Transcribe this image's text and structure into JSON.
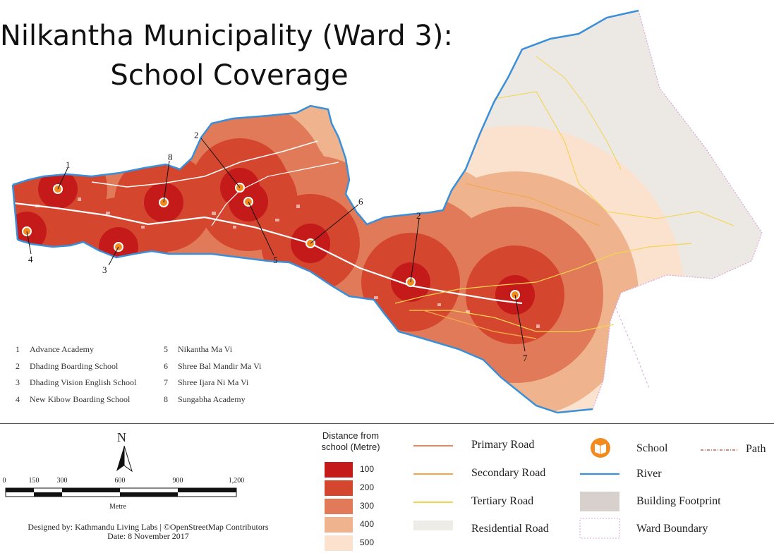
{
  "title": {
    "line1": "Nilkantha Municipality (Ward 3):",
    "line2": "School Coverage"
  },
  "schools": [
    {
      "number": "1",
      "name": "Advance Academy"
    },
    {
      "number": "2",
      "name": "Dhading Boarding School"
    },
    {
      "number": "3",
      "name": "Dhading Vision English School"
    },
    {
      "number": "4",
      "name": "New Kibow Boarding School"
    },
    {
      "number": "5",
      "name": "Nikantha Ma Vi"
    },
    {
      "number": "6",
      "name": "Shree Bal Mandir Ma Vi"
    },
    {
      "number": "7",
      "name": "Shree Ijara Ni Ma Vi"
    },
    {
      "number": "8",
      "name": "Sungabha Academy"
    }
  ],
  "map_callouts": [
    "1",
    "2",
    "8",
    "2",
    "6",
    "4",
    "3",
    "5",
    "7"
  ],
  "scale_bar": {
    "ticks": [
      "0",
      "150",
      "300",
      "600",
      "900",
      "1,200"
    ],
    "unit": "Metre",
    "north_label": "N"
  },
  "distance_legend": {
    "title_line1": "Distance from",
    "title_line2": "school (Metre)",
    "classes": [
      {
        "label": "100",
        "color": "#c41a1a"
      },
      {
        "label": "200",
        "color": "#d4462e"
      },
      {
        "label": "300",
        "color": "#e07a58"
      },
      {
        "label": "400",
        "color": "#efb48d"
      },
      {
        "label": "500",
        "color": "#fbe2ce"
      }
    ]
  },
  "road_legend": [
    {
      "label": "Primary Road",
      "color": "#e8865b"
    },
    {
      "label": "Secondary Road",
      "color": "#f2a648"
    },
    {
      "label": "Tertiary Road",
      "color": "#f4d44f"
    },
    {
      "label": "Residential Road",
      "color": "#eeece6"
    }
  ],
  "feature_legend": [
    {
      "label": "School",
      "color": "#f28a1c"
    },
    {
      "label": "River",
      "color": "#3a8fd8"
    },
    {
      "label": "Building Footprint",
      "color": "#d8d0cc"
    },
    {
      "label": "Ward Boundary",
      "color": "#d8a6d8"
    }
  ],
  "path_legend": {
    "label": "Path",
    "color": "#c0453f"
  },
  "credits": {
    "line1": "Designed by: Kathmandu Living Labs | ©OpenStreetMap Contributors",
    "line2": "Date: 8 November 2017"
  },
  "colors": {
    "ward_fill": "#ece9e5",
    "river": "#3a8fd8"
  }
}
